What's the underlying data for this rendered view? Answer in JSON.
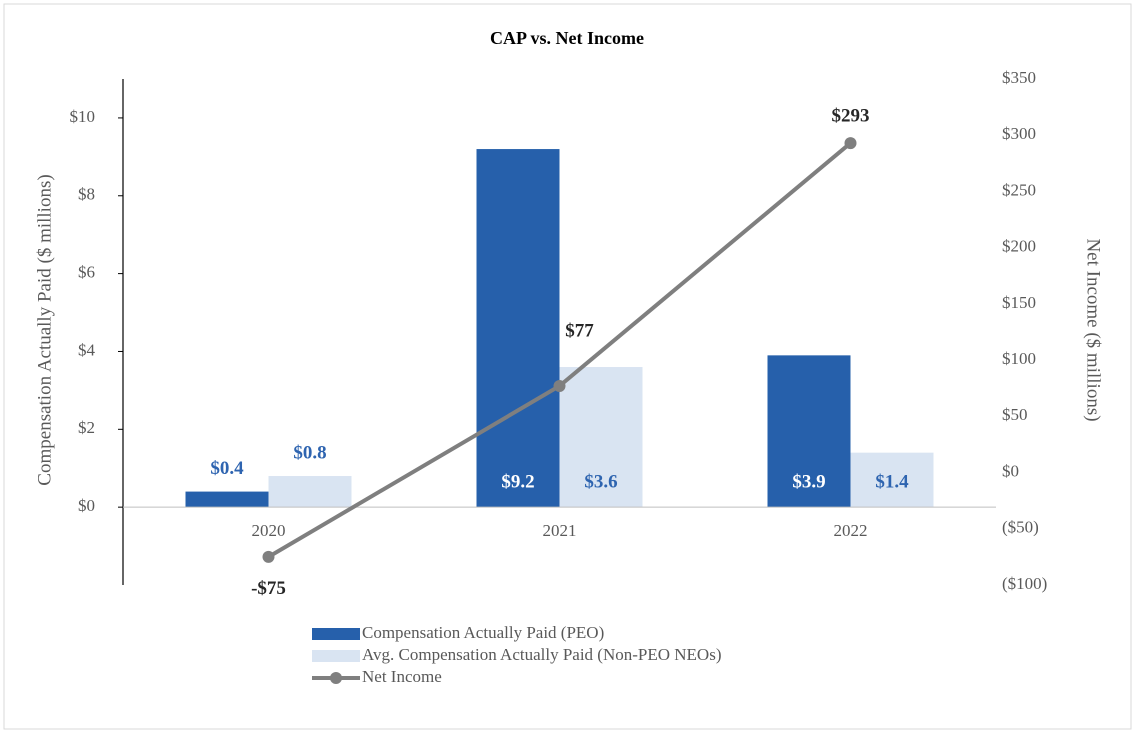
{
  "chart_data": {
    "type": "bar_line",
    "title": "CAP vs. Net Income",
    "categories": [
      "2020",
      "2021",
      "2022"
    ],
    "ylabel": "Compensation Actually Paid ($ millions)",
    "y2label": "Net Income ($ millions)",
    "ylim": [
      -2,
      11
    ],
    "yticks": [
      {
        "value": 0,
        "label": "$0"
      },
      {
        "value": 2,
        "label": "$2"
      },
      {
        "value": 4,
        "label": "$4"
      },
      {
        "value": 6,
        "label": "$6"
      },
      {
        "value": 8,
        "label": "$8"
      },
      {
        "value": 10,
        "label": "$10"
      }
    ],
    "y2lim": [
      -100,
      350
    ],
    "y2ticks": [
      {
        "value": -100,
        "label": "($100)"
      },
      {
        "value": -50,
        "label": "($50)"
      },
      {
        "value": 0,
        "label": "$0"
      },
      {
        "value": 50,
        "label": "$50"
      },
      {
        "value": 100,
        "label": "$100"
      },
      {
        "value": 150,
        "label": "$150"
      },
      {
        "value": 200,
        "label": "$200"
      },
      {
        "value": 250,
        "label": "$250"
      },
      {
        "value": 300,
        "label": "$300"
      },
      {
        "value": 350,
        "label": "$350"
      }
    ],
    "series": [
      {
        "name": "Compensation Actually Paid (PEO)",
        "type": "bar",
        "color": "#2660ab",
        "values": [
          0.4,
          9.2,
          3.9
        ],
        "value_labels": [
          "$0.4",
          "$9.2",
          "$3.9"
        ]
      },
      {
        "name": "Avg. Compensation Actually Paid (Non-PEO NEOs)",
        "type": "bar",
        "color": "#d9e4f2",
        "values": [
          0.8,
          3.6,
          1.4
        ],
        "value_labels": [
          "$0.8",
          "$3.6",
          "$1.4"
        ]
      },
      {
        "name": "Net Income",
        "type": "line",
        "axis": "y2",
        "color": "#7f7f7f",
        "values": [
          -75,
          77,
          293
        ],
        "value_labels": [
          "-$75",
          "$77",
          "$293"
        ]
      }
    ]
  }
}
